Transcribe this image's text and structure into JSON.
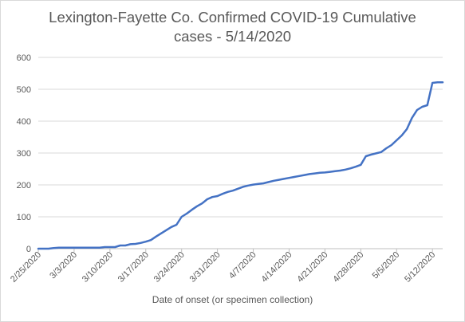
{
  "chart_data": {
    "type": "line",
    "title_line1": "Lexington-Fayette Co. Confirmed COVID-19 Cumulative",
    "title_line2": "cases - 5/14/2020",
    "xlabel": "Date of onset (or specimen collection)",
    "ylabel": "",
    "ylim": [
      0,
      600
    ],
    "y_ticks": [
      0,
      100,
      200,
      300,
      400,
      500,
      600
    ],
    "grid": "horizontal",
    "legend": "none",
    "line_color": "#4472c4",
    "x_tick_labels": [
      "2/25/2020",
      "3/3/2020",
      "3/10/2020",
      "3/17/2020",
      "3/24/2020",
      "3/31/2020",
      "4/7/2020",
      "4/14/2020",
      "4/21/2020",
      "4/28/2020",
      "5/5/2020",
      "5/12/2020"
    ],
    "x_start": "2/25/2020",
    "x_end": "5/14/2020",
    "series": [
      {
        "x": [
          "2/25/2020",
          "2/26/2020",
          "2/27/2020",
          "2/28/2020",
          "2/29/2020",
          "3/1/2020",
          "3/2/2020",
          "3/3/2020",
          "3/4/2020",
          "3/5/2020",
          "3/6/2020",
          "3/7/2020",
          "3/8/2020",
          "3/9/2020",
          "3/10/2020",
          "3/11/2020",
          "3/12/2020",
          "3/13/2020",
          "3/14/2020",
          "3/15/2020",
          "3/16/2020",
          "3/17/2020",
          "3/18/2020",
          "3/19/2020",
          "3/20/2020",
          "3/21/2020",
          "3/22/2020",
          "3/23/2020",
          "3/24/2020",
          "3/25/2020",
          "3/26/2020",
          "3/27/2020",
          "3/28/2020",
          "3/29/2020",
          "3/30/2020",
          "3/31/2020",
          "4/1/2020",
          "4/2/2020",
          "4/3/2020",
          "4/4/2020",
          "4/5/2020",
          "4/6/2020",
          "4/7/2020",
          "4/8/2020",
          "4/9/2020",
          "4/10/2020",
          "4/11/2020",
          "4/12/2020",
          "4/13/2020",
          "4/14/2020",
          "4/15/2020",
          "4/16/2020",
          "4/17/2020",
          "4/18/2020",
          "4/19/2020",
          "4/20/2020",
          "4/21/2020",
          "4/22/2020",
          "4/23/2020",
          "4/24/2020",
          "4/25/2020",
          "4/26/2020",
          "4/27/2020",
          "4/28/2020",
          "4/29/2020",
          "4/30/2020",
          "5/1/2020",
          "5/2/2020",
          "5/3/2020",
          "5/4/2020",
          "5/5/2020",
          "5/6/2020",
          "5/7/2020",
          "5/8/2020",
          "5/9/2020",
          "5/10/2020",
          "5/11/2020",
          "5/12/2020",
          "5/13/2020",
          "5/14/2020"
        ],
        "values": [
          0,
          0,
          0,
          2,
          3,
          3,
          3,
          3,
          3,
          3,
          3,
          3,
          3,
          5,
          5,
          5,
          10,
          10,
          14,
          15,
          18,
          22,
          27,
          38,
          48,
          58,
          68,
          75,
          100,
          110,
          122,
          133,
          142,
          155,
          162,
          165,
          172,
          178,
          182,
          188,
          194,
          198,
          201,
          203,
          205,
          209,
          213,
          216,
          219,
          222,
          225,
          228,
          231,
          234,
          236,
          238,
          239,
          241,
          243,
          245,
          248,
          252,
          257,
          263,
          290,
          295,
          299,
          303,
          315,
          325,
          340,
          355,
          375,
          410,
          435,
          445,
          450,
          520,
          522,
          522
        ]
      }
    ]
  }
}
